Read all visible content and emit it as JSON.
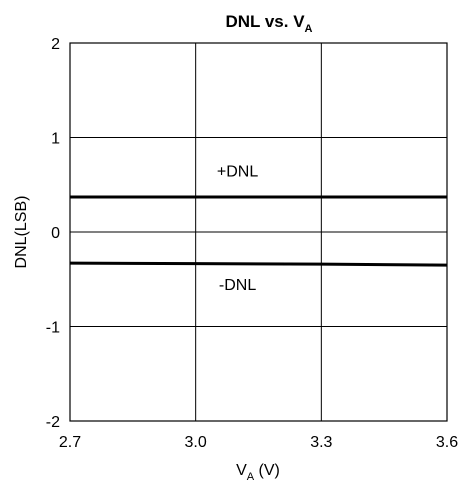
{
  "chart_data": {
    "type": "line",
    "title": {
      "main": "DNL vs. V",
      "sub": "A"
    },
    "xlabel": {
      "main": "V",
      "sub": "A",
      "suffix": " (V)"
    },
    "ylabel": "DNL(LSB)",
    "xlim": [
      2.7,
      3.6
    ],
    "ylim": [
      -2,
      2
    ],
    "xticks": [
      "2.7",
      "3.0",
      "3.3",
      "3.6"
    ],
    "yticks": [
      "2",
      "1",
      "0",
      "-1",
      "-2"
    ],
    "grid": true,
    "series": [
      {
        "name": "+DNL",
        "x": [
          2.7,
          3.0,
          3.3,
          3.6
        ],
        "y": [
          0.37,
          0.37,
          0.37,
          0.37
        ]
      },
      {
        "name": "-DNL",
        "x": [
          2.7,
          3.0,
          3.3,
          3.6
        ],
        "y": [
          -0.33,
          -0.335,
          -0.34,
          -0.35
        ]
      }
    ],
    "annotations": [
      {
        "text": "+DNL",
        "x": 3.1,
        "y": 0.65
      },
      {
        "text": "-DNL",
        "x": 3.1,
        "y": -0.55
      }
    ]
  }
}
